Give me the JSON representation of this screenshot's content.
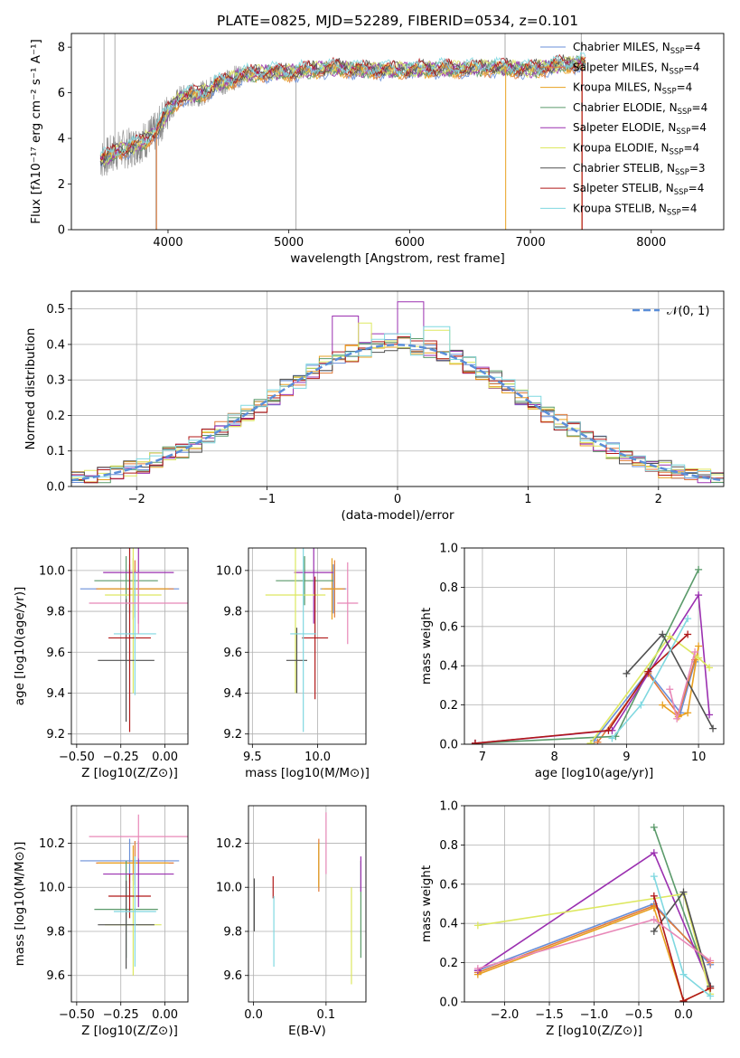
{
  "figure_title": "PLATE=0825, MJD=52289, FIBERID=0534, z=0.101",
  "colors": {
    "Chabrier MILES": "#6a8fd8",
    "Salpeter MILES": "#e07b39",
    "Kroupa MILES": "#e8a020",
    "Chabrier ELODIE": "#5a9a6a",
    "Salpeter ELODIE": "#9b30b0",
    "Kroupa ELODIE": "#dde860",
    "Chabrier STELIB": "#505050",
    "Salpeter STELIB": "#b01818",
    "Kroupa STELIB": "#7fd8e0",
    "extra": "#e888b8",
    "gaussian": "#5b8ed8",
    "observed": "#888888"
  },
  "chart_data": [
    {
      "id": "spectrum",
      "type": "line",
      "xlabel": "wavelength [Angstrom, rest frame]",
      "ylabel": "Flux [fλ10⁻¹⁷ erg cm⁻² s⁻¹ A⁻¹]",
      "xlim": [
        3200,
        8600
      ],
      "ylim": [
        0,
        8.6
      ],
      "xticks": [
        4000,
        5000,
        6000,
        7000,
        8000
      ],
      "yticks": [
        0,
        2,
        4,
        6,
        8
      ],
      "legend": "top-right",
      "continuum": {
        "x": [
          3450,
          3500,
          3600,
          3700,
          3800,
          3900,
          4000,
          4100,
          4200,
          4300,
          4400,
          4500,
          4600,
          4700,
          4800,
          4900,
          5000,
          5200,
          5400,
          5600,
          5800,
          6000,
          6200,
          6400,
          6600,
          6800,
          7000,
          7200,
          7400
        ],
        "y": [
          3.1,
          3.2,
          3.5,
          3.6,
          3.9,
          4.3,
          5.2,
          5.8,
          5.9,
          6.0,
          6.4,
          6.5,
          6.8,
          6.8,
          6.9,
          6.9,
          6.9,
          7.0,
          7.1,
          7.0,
          7.0,
          7.0,
          7.05,
          7.05,
          7.1,
          7.1,
          7.0,
          7.2,
          7.3
        ]
      },
      "series": [
        {
          "name": "Chabrier MILES, N_SSP=4",
          "label_main": "Chabrier MILES, N",
          "label_sub": "SSP",
          "label_tail": "=4",
          "key": "Chabrier MILES"
        },
        {
          "name": "Salpeter MILES, N_SSP=4",
          "label_main": "Salpeter MILES, N",
          "label_sub": "SSP",
          "label_tail": "=4",
          "key": "Salpeter MILES"
        },
        {
          "name": "Kroupa MILES, N_SSP=4",
          "label_main": "Kroupa MILES, N",
          "label_sub": "SSP",
          "label_tail": "=4",
          "key": "Kroupa MILES"
        },
        {
          "name": "Chabrier ELODIE, N_SSP=4",
          "label_main": "Chabrier ELODIE, N",
          "label_sub": "SSP",
          "label_tail": "=4",
          "key": "Chabrier ELODIE"
        },
        {
          "name": "Salpeter ELODIE, N_SSP=4",
          "label_main": "Salpeter ELODIE, N",
          "label_sub": "SSP",
          "label_tail": "=4",
          "key": "Salpeter ELODIE"
        },
        {
          "name": "Kroupa ELODIE, N_SSP=4",
          "label_main": "Kroupa ELODIE, N",
          "label_sub": "SSP",
          "label_tail": "=4",
          "key": "Kroupa ELODIE"
        },
        {
          "name": "Chabrier STELIB, N_SSP=3",
          "label_main": "Chabrier STELIB, N",
          "label_sub": "SSP",
          "label_tail": "=3",
          "key": "Chabrier STELIB"
        },
        {
          "name": "Salpeter STELIB, N_SSP=4",
          "label_main": "Salpeter STELIB, N",
          "label_sub": "SSP",
          "label_tail": "=4",
          "key": "Salpeter STELIB"
        },
        {
          "name": "Kroupa STELIB, N_SSP=4",
          "label_main": "Kroupa STELIB, N",
          "label_sub": "SSP",
          "label_tail": "=4",
          "key": "Kroupa STELIB"
        }
      ]
    },
    {
      "id": "residuals",
      "type": "line",
      "xlabel": "(data-model)/error",
      "ylabel": "Normed distribution",
      "xlim": [
        -2.5,
        2.5
      ],
      "ylim": [
        0,
        0.55
      ],
      "xticks": [
        -2,
        -1,
        0,
        1,
        2
      ],
      "yticks": [
        0.0,
        0.1,
        0.2,
        0.3,
        0.4,
        0.5
      ],
      "legend": "top-right",
      "gaussian_label": "𝒩(0, 1)",
      "bin_width": 0.1,
      "spikes": {
        "Salpeter ELODIE": [
          [
            -0.4,
            0.48
          ],
          [
            0.1,
            0.52
          ],
          [
            -0.1,
            0.43
          ]
        ],
        "Kroupa ELODIE": [
          [
            -0.25,
            0.46
          ],
          [
            0.3,
            0.44
          ]
        ],
        "Salpeter STELIB": [
          [
            0.2,
            0.41
          ]
        ],
        "Kroupa STELIB": [
          [
            0.3,
            0.45
          ],
          [
            0.0,
            0.43
          ]
        ]
      }
    },
    {
      "id": "age-vs-Z",
      "type": "scatter",
      "xlabel": "Z [log10(Z/Z⊙)]",
      "ylabel": "age  [log10(age/yr)]",
      "xlim": [
        -0.53,
        0.13
      ],
      "ylim": [
        9.15,
        10.11
      ],
      "xticks": [
        -0.5,
        -0.25,
        0.0
      ],
      "yticks": [
        9.2,
        9.4,
        9.6,
        9.8,
        10.0
      ],
      "points": [
        {
          "key": "Chabrier MILES",
          "x": -0.2,
          "xerr": 0.28,
          "y": 9.91,
          "yerr": 0.12
        },
        {
          "key": "Salpeter MILES",
          "x": -0.17,
          "xerr": 0.22,
          "y": 9.91,
          "yerr": 0.14
        },
        {
          "key": "Kroupa MILES",
          "x": -0.18,
          "xerr": 0.2,
          "y": 9.91,
          "yerr": 0.15
        },
        {
          "key": "Chabrier ELODIE",
          "x": -0.22,
          "xerr": 0.18,
          "y": 9.95,
          "yerr": 0.12
        },
        {
          "key": "Salpeter ELODIE",
          "x": -0.15,
          "xerr": 0.2,
          "y": 9.99,
          "yerr": 0.25
        },
        {
          "key": "Kroupa ELODIE",
          "x": -0.18,
          "xerr": 0.16,
          "y": 9.88,
          "yerr": 0.48
        },
        {
          "key": "Chabrier STELIB",
          "x": -0.22,
          "xerr": 0.16,
          "y": 9.56,
          "yerr": 0.3
        },
        {
          "key": "Salpeter STELIB",
          "x": -0.2,
          "xerr": 0.12,
          "y": 9.67,
          "yerr": 0.46
        },
        {
          "key": "Kroupa STELIB",
          "x": -0.17,
          "xerr": 0.12,
          "y": 9.69,
          "yerr": 0.3
        },
        {
          "key": "extra",
          "x": -0.15,
          "xerr": 0.28,
          "y": 9.84,
          "yerr": 0.15
        }
      ]
    },
    {
      "id": "age-vs-mass",
      "type": "scatter",
      "xlabel": "mass [log10(M/M⊙)]",
      "ylabel": "",
      "xlim": [
        9.47,
        10.37
      ],
      "ylim": [
        9.15,
        10.11
      ],
      "xticks": [
        9.5,
        10.0
      ],
      "yticks": [
        9.2,
        9.4,
        9.6,
        9.8,
        10.0
      ],
      "points": [
        {
          "key": "Chabrier MILES",
          "x": 10.12,
          "xerr": 0.1,
          "y": 9.91,
          "yerr": 0.12
        },
        {
          "key": "Salpeter MILES",
          "x": 10.13,
          "xerr": 0.08,
          "y": 9.91,
          "yerr": 0.14
        },
        {
          "key": "Kroupa MILES",
          "x": 10.11,
          "xerr": 0.08,
          "y": 9.91,
          "yerr": 0.15
        },
        {
          "key": "Chabrier ELODIE",
          "x": 9.9,
          "xerr": 0.22,
          "y": 9.95,
          "yerr": 0.12
        },
        {
          "key": "Salpeter ELODIE",
          "x": 9.97,
          "xerr": 0.15,
          "y": 9.99,
          "yerr": 0.25
        },
        {
          "key": "Kroupa ELODIE",
          "x": 9.83,
          "xerr": 0.23,
          "y": 9.88,
          "yerr": 0.48
        },
        {
          "key": "Chabrier STELIB",
          "x": 9.84,
          "xerr": 0.08,
          "y": 9.56,
          "yerr": 0.16
        },
        {
          "key": "Salpeter STELIB",
          "x": 9.98,
          "xerr": 0.1,
          "y": 9.67,
          "yerr": 0.3
        },
        {
          "key": "Kroupa STELIB",
          "x": 9.89,
          "xerr": 0.1,
          "y": 9.69,
          "yerr": 0.48
        },
        {
          "key": "extra",
          "x": 10.23,
          "xerr": 0.08,
          "y": 9.84,
          "yerr": 0.2
        }
      ]
    },
    {
      "id": "weight-vs-age",
      "type": "line",
      "xlabel": "age  [log10(age/yr)]",
      "ylabel": "mass weight",
      "xlim": [
        6.75,
        10.35
      ],
      "ylim": [
        0,
        1.0
      ],
      "xticks": [
        7,
        8,
        9,
        10
      ],
      "yticks": [
        0.0,
        0.2,
        0.4,
        0.6,
        0.8,
        1.0
      ],
      "series": [
        {
          "key": "Chabrier MILES",
          "x": [
            8.55,
            9.3,
            9.75,
            9.95
          ],
          "y": [
            0.02,
            0.37,
            0.16,
            0.42
          ]
        },
        {
          "key": "Salpeter MILES",
          "x": [
            8.6,
            9.3,
            9.72,
            9.95
          ],
          "y": [
            0.01,
            0.36,
            0.15,
            0.43
          ]
        },
        {
          "key": "Kroupa MILES",
          "x": [
            9.5,
            9.72,
            9.85,
            10.0
          ],
          "y": [
            0.2,
            0.14,
            0.16,
            0.5
          ]
        },
        {
          "key": "Chabrier ELODIE",
          "x": [
            6.9,
            8.85,
            10.0
          ],
          "y": [
            0.005,
            0.04,
            0.89
          ]
        },
        {
          "key": "Salpeter ELODIE",
          "x": [
            6.9,
            8.8,
            10.0,
            10.15
          ],
          "y": [
            0.005,
            0.07,
            0.76,
            0.15
          ]
        },
        {
          "key": "Kroupa ELODIE",
          "x": [
            8.5,
            9.6,
            10.0,
            10.15
          ],
          "y": [
            0.005,
            0.55,
            0.44,
            0.39
          ]
        },
        {
          "key": "Chabrier STELIB",
          "x": [
            9.0,
            9.5,
            10.2
          ],
          "y": [
            0.36,
            0.56,
            0.08
          ]
        },
        {
          "key": "Salpeter STELIB",
          "x": [
            6.9,
            8.75,
            9.3,
            9.85
          ],
          "y": [
            0.005,
            0.07,
            0.37,
            0.56
          ]
        },
        {
          "key": "Kroupa STELIB",
          "x": [
            8.8,
            9.2,
            9.85
          ],
          "y": [
            0.03,
            0.2,
            0.64
          ]
        },
        {
          "key": "extra",
          "x": [
            9.6,
            9.7,
            9.95
          ],
          "y": [
            0.28,
            0.13,
            0.47
          ]
        }
      ]
    },
    {
      "id": "mass-vs-Z",
      "type": "scatter",
      "xlabel": "Z [log10(Z/Z⊙)]",
      "ylabel": "mass [log10(M/M⊙)]",
      "xlim": [
        -0.53,
        0.13
      ],
      "ylim": [
        9.48,
        10.37
      ],
      "xticks": [
        -0.5,
        -0.25,
        0.0
      ],
      "yticks": [
        9.6,
        9.8,
        10.0,
        10.2
      ],
      "points": [
        {
          "key": "Chabrier MILES",
          "x": -0.2,
          "xerr": 0.28,
          "y": 10.12,
          "yerr": 0.1
        },
        {
          "key": "Salpeter MILES",
          "x": -0.17,
          "xerr": 0.22,
          "y": 10.11,
          "yerr": 0.1
        },
        {
          "key": "Kroupa MILES",
          "x": -0.18,
          "xerr": 0.2,
          "y": 10.11,
          "yerr": 0.08
        },
        {
          "key": "Chabrier ELODIE",
          "x": -0.22,
          "xerr": 0.18,
          "y": 9.9,
          "yerr": 0.22
        },
        {
          "key": "Salpeter ELODIE",
          "x": -0.15,
          "xerr": 0.2,
          "y": 10.06,
          "yerr": 0.15
        },
        {
          "key": "Kroupa ELODIE",
          "x": -0.18,
          "xerr": 0.16,
          "y": 9.83,
          "yerr": 0.23
        },
        {
          "key": "Chabrier STELIB",
          "x": -0.22,
          "xerr": 0.16,
          "y": 9.83,
          "yerr": 0.2
        },
        {
          "key": "Salpeter STELIB",
          "x": -0.2,
          "xerr": 0.12,
          "y": 9.96,
          "yerr": 0.1
        },
        {
          "key": "Kroupa STELIB",
          "x": -0.17,
          "xerr": 0.12,
          "y": 9.89,
          "yerr": 0.25
        },
        {
          "key": "extra",
          "x": -0.15,
          "xerr": 0.28,
          "y": 10.23,
          "yerr": 0.1
        }
      ]
    },
    {
      "id": "mass-vs-EBV",
      "type": "scatter",
      "xlabel": "E(B-V)",
      "ylabel": "",
      "xlim": [
        -0.007,
        0.155
      ],
      "ylim": [
        9.48,
        10.37
      ],
      "xticks": [
        0.0,
        0.1
      ],
      "yticks": [
        9.6,
        9.8,
        10.0,
        10.2
      ],
      "points": [
        {
          "key": "Chabrier MILES",
          "x": 0.09,
          "y": 10.1,
          "yerr": 0.1
        },
        {
          "key": "Salpeter MILES",
          "x": 0.09,
          "y": 10.1,
          "yerr": 0.12
        },
        {
          "key": "Kroupa MILES",
          "x": 0.09,
          "y": 10.1,
          "yerr": 0.1
        },
        {
          "key": "Chabrier ELODIE",
          "x": 0.148,
          "y": 9.9,
          "yerr": 0.22
        },
        {
          "key": "Salpeter ELODIE",
          "x": 0.148,
          "y": 10.06,
          "yerr": 0.08
        },
        {
          "key": "Kroupa ELODIE",
          "x": 0.135,
          "y": 9.78,
          "yerr": 0.22
        },
        {
          "key": "Chabrier STELIB",
          "x": 0.001,
          "y": 9.92,
          "yerr": 0.12
        },
        {
          "key": "Salpeter STELIB",
          "x": 0.027,
          "y": 10.0,
          "yerr": 0.05
        },
        {
          "key": "Kroupa STELIB",
          "x": 0.028,
          "y": 9.8,
          "yerr": 0.16
        },
        {
          "key": "extra",
          "x": 0.1,
          "y": 10.2,
          "yerr": 0.14
        }
      ]
    },
    {
      "id": "weight-vs-Z",
      "type": "line",
      "xlabel": "Z [log10(Z/Z⊙)]",
      "ylabel": "mass weight",
      "xlim": [
        -2.45,
        0.45
      ],
      "ylim": [
        0,
        1.0
      ],
      "xticks": [
        -2.0,
        -1.5,
        -1.0,
        -0.5,
        0.0
      ],
      "yticks": [
        0.0,
        0.2,
        0.4,
        0.6,
        0.8,
        1.0
      ],
      "series": [
        {
          "key": "Chabrier MILES",
          "x": [
            -2.3,
            -0.33,
            0.3
          ],
          "y": [
            0.16,
            0.5,
            0.19
          ]
        },
        {
          "key": "Salpeter MILES",
          "x": [
            -2.3,
            -0.33,
            0.3
          ],
          "y": [
            0.15,
            0.49,
            0.2
          ]
        },
        {
          "key": "Kroupa MILES",
          "x": [
            -2.3,
            -0.33,
            0.0,
            0.3
          ],
          "y": [
            0.14,
            0.48,
            0.005,
            0.07
          ]
        },
        {
          "key": "Chabrier ELODIE",
          "x": [
            -0.33,
            0.3
          ],
          "y": [
            0.89,
            0.07
          ]
        },
        {
          "key": "Salpeter ELODIE",
          "x": [
            -2.3,
            -0.33,
            0.3
          ],
          "y": [
            0.16,
            0.76,
            0.08
          ]
        },
        {
          "key": "Kroupa ELODIE",
          "x": [
            -2.3,
            0.0,
            0.3
          ],
          "y": [
            0.39,
            0.55,
            0.04
          ]
        },
        {
          "key": "Chabrier STELIB",
          "x": [
            -0.33,
            0.0,
            0.3
          ],
          "y": [
            0.36,
            0.56,
            0.08
          ]
        },
        {
          "key": "Salpeter STELIB",
          "x": [
            -0.33,
            0.0,
            0.3
          ],
          "y": [
            0.54,
            0.005,
            0.07
          ]
        },
        {
          "key": "Kroupa STELIB",
          "x": [
            -0.33,
            0.0,
            0.3
          ],
          "y": [
            0.64,
            0.14,
            0.03
          ]
        },
        {
          "key": "extra",
          "x": [
            -2.3,
            -0.33,
            0.3
          ],
          "y": [
            0.17,
            0.42,
            0.21
          ]
        }
      ]
    }
  ]
}
